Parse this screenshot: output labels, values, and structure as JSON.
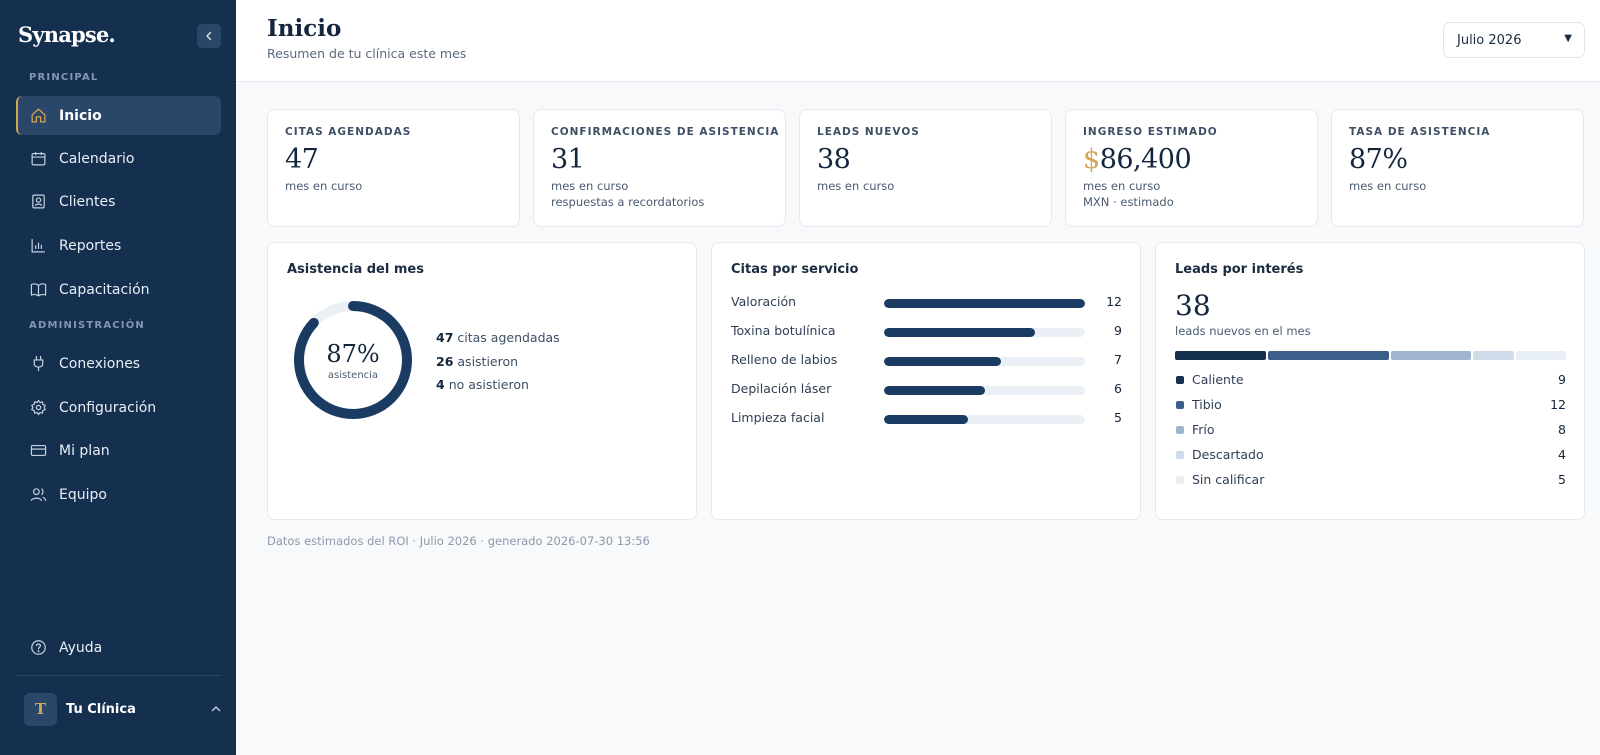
{
  "app": {
    "logo": "Synapse."
  },
  "sidebar": {
    "principal_label": "PRINCIPAL",
    "admin_label": "ADMINISTRACIÓN",
    "principal_items": [
      {
        "label": "Inicio",
        "icon": "home-icon",
        "active": true
      },
      {
        "label": "Calendario",
        "icon": "calendar-icon"
      },
      {
        "label": "Clientes",
        "icon": "clients-icon"
      },
      {
        "label": "Reportes",
        "icon": "reports-icon"
      },
      {
        "label": "Capacitación",
        "icon": "book-icon"
      }
    ],
    "admin_items": [
      {
        "label": "Conexiones",
        "icon": "plug-icon"
      },
      {
        "label": "Configuración",
        "icon": "gear-icon"
      },
      {
        "label": "Mi plan",
        "icon": "credit-card-icon"
      },
      {
        "label": "Equipo",
        "icon": "team-icon"
      }
    ],
    "help_label": "Ayuda",
    "clinic": {
      "initial": "T",
      "name": "Tu Clínica"
    }
  },
  "header": {
    "title": "Inicio",
    "subtitle": "Resumen de tu clínica este mes",
    "month_select": "Julio 2026"
  },
  "kpis": [
    {
      "label": "CITAS AGENDADAS",
      "value": "47",
      "sub1": "mes en curso",
      "sub2": ""
    },
    {
      "label": "CONFIRMACIONES DE ASISTENCIA",
      "value": "31",
      "sub1": "mes en curso",
      "sub2": "respuestas a recordatorios"
    },
    {
      "label": "LEADS NUEVOS",
      "value": "38",
      "sub1": "mes en curso",
      "sub2": ""
    },
    {
      "label": "INGRESO ESTIMADO",
      "currency": "$",
      "value": "86,400",
      "sub1": "mes en curso",
      "sub2": "MXN · estimado"
    },
    {
      "label": "TASA DE ASISTENCIA",
      "value": "87%",
      "sub1": "mes en curso",
      "sub2": ""
    }
  ],
  "attendance": {
    "title": "Asistencia del mes",
    "percent_text": "87%",
    "percent": 87,
    "caption": "asistencia",
    "lines": [
      {
        "num": "47",
        "text": "citas agendadas"
      },
      {
        "num": "26",
        "text": "asistieron"
      },
      {
        "num": "4",
        "text": "no asistieron"
      }
    ]
  },
  "services": {
    "title": "Citas por servicio",
    "max": 12,
    "rows": [
      {
        "name": "Valoración",
        "value": 12
      },
      {
        "name": "Toxina botulínica",
        "value": 9
      },
      {
        "name": "Relleno de labios",
        "value": 7
      },
      {
        "name": "Depilación láser",
        "value": 6
      },
      {
        "name": "Limpieza facial",
        "value": 5
      }
    ]
  },
  "leads": {
    "title": "Leads por interés",
    "total": "38",
    "subtitle": "leads nuevos en el mes",
    "categories": [
      {
        "name": "Caliente",
        "value": 9,
        "color": "#15304f"
      },
      {
        "name": "Tibio",
        "value": 12,
        "color": "#3b5f8a"
      },
      {
        "name": "Frío",
        "value": 8,
        "color": "#9fb4cd"
      },
      {
        "name": "Descartado",
        "value": 4,
        "color": "#cfdbe8"
      },
      {
        "name": "Sin calificar",
        "value": 5,
        "color": "#e8eef5"
      }
    ]
  },
  "footer": {
    "note": "Datos estimados del ROI · Julio 2026 · generado 2026-07-30 13:56"
  },
  "colors": {
    "sidebar": "#15304f",
    "accent_gold": "#d4a654",
    "bar": "#1a3c63",
    "track": "#eaf0f6"
  }
}
